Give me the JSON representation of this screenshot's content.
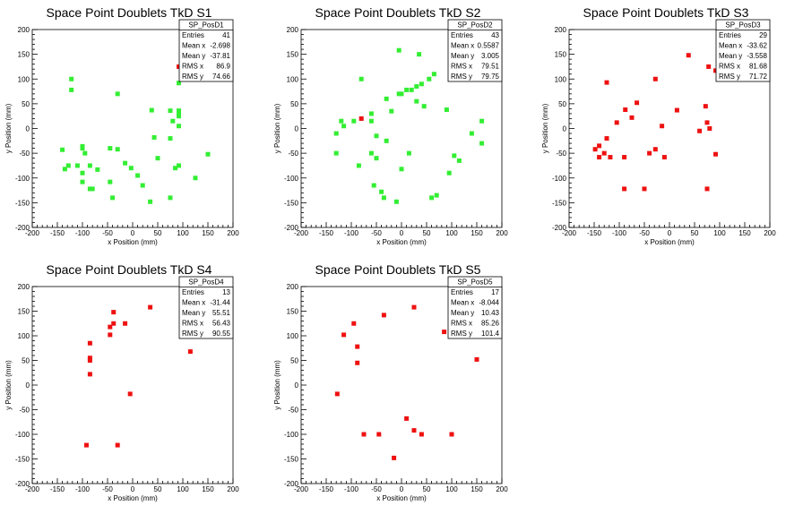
{
  "chart_data": [
    {
      "type": "scatter",
      "title": "Space Point Doublets TkD S1",
      "xlabel": "x Position (mm)",
      "ylabel": "y Position (mm)",
      "xlim": [
        -200,
        200
      ],
      "ylim": [
        -200,
        200
      ],
      "xticks": [
        "-200",
        "-150",
        "-100",
        "-50",
        "0",
        "50",
        "100",
        "150",
        "200"
      ],
      "yticks": [
        "-200",
        "-150",
        "-100",
        "-50",
        "0",
        "50",
        "100",
        "150",
        "200"
      ],
      "stats": {
        "name": "SP_PosD1",
        "rows": [
          {
            "label": "Entries",
            "value": "41"
          },
          {
            "label": "Mean x",
            "value": "-2.698"
          },
          {
            "label": "Mean y",
            "value": "-37.81"
          },
          {
            "label": "RMS x",
            "value": "86.9"
          },
          {
            "label": "RMS y",
            "value": "74.66"
          }
        ]
      },
      "color": "#33ee33",
      "points": [
        {
          "x": 92,
          "y": 125,
          "c": "#ee1111"
        },
        {
          "x": -122,
          "y": 100
        },
        {
          "x": -122,
          "y": 78
        },
        {
          "x": -30,
          "y": 70
        },
        {
          "x": 92,
          "y": 92
        },
        {
          "x": 38,
          "y": 37
        },
        {
          "x": 75,
          "y": 36
        },
        {
          "x": 92,
          "y": 36
        },
        {
          "x": 92,
          "y": 30
        },
        {
          "x": 92,
          "y": 25
        },
        {
          "x": 92,
          "y": 5
        },
        {
          "x": 80,
          "y": 15
        },
        {
          "x": 43,
          "y": -18
        },
        {
          "x": 75,
          "y": -20
        },
        {
          "x": -100,
          "y": -36
        },
        {
          "x": -100,
          "y": -40
        },
        {
          "x": -45,
          "y": -40
        },
        {
          "x": -30,
          "y": -42
        },
        {
          "x": -95,
          "y": -50
        },
        {
          "x": -140,
          "y": -43
        },
        {
          "x": -128,
          "y": -75
        },
        {
          "x": -135,
          "y": -82
        },
        {
          "x": -110,
          "y": -75
        },
        {
          "x": -100,
          "y": -90
        },
        {
          "x": -85,
          "y": -75
        },
        {
          "x": -70,
          "y": -83
        },
        {
          "x": -15,
          "y": -70
        },
        {
          "x": -3,
          "y": -80
        },
        {
          "x": 50,
          "y": -60
        },
        {
          "x": 92,
          "y": -75
        },
        {
          "x": 85,
          "y": -80
        },
        {
          "x": 150,
          "y": -52
        },
        {
          "x": -100,
          "y": -108
        },
        {
          "x": -85,
          "y": -122
        },
        {
          "x": -80,
          "y": -122
        },
        {
          "x": -45,
          "y": -108
        },
        {
          "x": 20,
          "y": -115
        },
        {
          "x": 10,
          "y": -95
        },
        {
          "x": 125,
          "y": -100
        },
        {
          "x": -40,
          "y": -140
        },
        {
          "x": 35,
          "y": -148
        },
        {
          "x": 75,
          "y": -140
        }
      ]
    },
    {
      "type": "scatter",
      "title": "Space Point Doublets TkD S2",
      "xlabel": "x Position (mm)",
      "ylabel": "y Position (mm)",
      "xlim": [
        -200,
        200
      ],
      "ylim": [
        -200,
        200
      ],
      "xticks": [
        "-200",
        "-150",
        "-100",
        "-50",
        "0",
        "50",
        "100",
        "150",
        "200"
      ],
      "yticks": [
        "-200",
        "-150",
        "-100",
        "-50",
        "0",
        "50",
        "100",
        "150",
        "200"
      ],
      "stats": {
        "name": "SP_PosD2",
        "rows": [
          {
            "label": "Entries",
            "value": "43"
          },
          {
            "label": "Mean x",
            "value": "0.5587"
          },
          {
            "label": "Mean y",
            "value": "3.005"
          },
          {
            "label": "RMS x",
            "value": "79.51"
          },
          {
            "label": "RMS y",
            "value": "79.75"
          }
        ]
      },
      "color": "#33ee33",
      "points": [
        {
          "x": -80,
          "y": 20,
          "c": "#ee1111"
        },
        {
          "x": -5,
          "y": 158
        },
        {
          "x": 35,
          "y": 150
        },
        {
          "x": 100,
          "y": 125
        },
        {
          "x": -80,
          "y": 100
        },
        {
          "x": 65,
          "y": 110
        },
        {
          "x": 55,
          "y": 100
        },
        {
          "x": 40,
          "y": 90
        },
        {
          "x": 30,
          "y": 85
        },
        {
          "x": 20,
          "y": 78
        },
        {
          "x": 10,
          "y": 78
        },
        {
          "x": 0,
          "y": 70
        },
        {
          "x": -5,
          "y": 70
        },
        {
          "x": -30,
          "y": 60
        },
        {
          "x": 30,
          "y": 55
        },
        {
          "x": 45,
          "y": 45
        },
        {
          "x": -20,
          "y": 35
        },
        {
          "x": 90,
          "y": 38
        },
        {
          "x": -60,
          "y": 30
        },
        {
          "x": -60,
          "y": 15
        },
        {
          "x": -120,
          "y": 15
        },
        {
          "x": -115,
          "y": 5
        },
        {
          "x": -95,
          "y": 15
        },
        {
          "x": 160,
          "y": 15
        },
        {
          "x": -130,
          "y": -10
        },
        {
          "x": -50,
          "y": -15
        },
        {
          "x": -30,
          "y": -25
        },
        {
          "x": 140,
          "y": -10
        },
        {
          "x": 160,
          "y": -30
        },
        {
          "x": -130,
          "y": -50
        },
        {
          "x": -60,
          "y": -50
        },
        {
          "x": -50,
          "y": -60
        },
        {
          "x": 15,
          "y": -50
        },
        {
          "x": 105,
          "y": -55
        },
        {
          "x": 115,
          "y": -65
        },
        {
          "x": -85,
          "y": -75
        },
        {
          "x": 0,
          "y": -82
        },
        {
          "x": 95,
          "y": -90
        },
        {
          "x": -55,
          "y": -115
        },
        {
          "x": -40,
          "y": -128
        },
        {
          "x": -35,
          "y": -140
        },
        {
          "x": 70,
          "y": -135
        },
        {
          "x": 60,
          "y": -140
        },
        {
          "x": -10,
          "y": -148
        }
      ]
    },
    {
      "type": "scatter",
      "title": "Space Point Doublets TkD S3",
      "xlabel": "x Position (mm)",
      "ylabel": "y Position (mm)",
      "xlim": [
        -200,
        200
      ],
      "ylim": [
        -200,
        200
      ],
      "xticks": [
        "-200",
        "-150",
        "-100",
        "-50",
        "0",
        "50",
        "100",
        "150",
        "200"
      ],
      "yticks": [
        "-200",
        "-150",
        "-100",
        "-50",
        "0",
        "50",
        "100",
        "150",
        "200"
      ],
      "stats": {
        "name": "SP_PosD3",
        "rows": [
          {
            "label": "Entries",
            "value": "29"
          },
          {
            "label": "Mean x",
            "value": "-33.62"
          },
          {
            "label": "Mean y",
            "value": "-3.558"
          },
          {
            "label": "RMS x",
            "value": "81.68"
          },
          {
            "label": "RMS y",
            "value": "71.72"
          }
        ]
      },
      "color": "#ee1111",
      "points": [
        {
          "x": 38,
          "y": 148
        },
        {
          "x": 78,
          "y": 125
        },
        {
          "x": 92,
          "y": 117
        },
        {
          "x": -28,
          "y": 100
        },
        {
          "x": -125,
          "y": 93
        },
        {
          "x": -65,
          "y": 52
        },
        {
          "x": 72,
          "y": 45
        },
        {
          "x": -88,
          "y": 38
        },
        {
          "x": 15,
          "y": 37
        },
        {
          "x": -75,
          "y": 22
        },
        {
          "x": -105,
          "y": 12
        },
        {
          "x": 75,
          "y": 12
        },
        {
          "x": -15,
          "y": 5
        },
        {
          "x": 80,
          "y": 0
        },
        {
          "x": 60,
          "y": -5
        },
        {
          "x": -125,
          "y": -20
        },
        {
          "x": -140,
          "y": -35
        },
        {
          "x": -148,
          "y": -42
        },
        {
          "x": -130,
          "y": -50
        },
        {
          "x": -140,
          "y": -58
        },
        {
          "x": -118,
          "y": -58
        },
        {
          "x": -28,
          "y": -42
        },
        {
          "x": -40,
          "y": -50
        },
        {
          "x": -90,
          "y": -58
        },
        {
          "x": -10,
          "y": -58
        },
        {
          "x": 92,
          "y": -52
        },
        {
          "x": -90,
          "y": -122
        },
        {
          "x": -50,
          "y": -122
        },
        {
          "x": 75,
          "y": -122
        }
      ]
    },
    {
      "type": "scatter",
      "title": "Space Point Doublets TkD S4",
      "xlabel": "x Position (mm)",
      "ylabel": "y Position (mm)",
      "xlim": [
        -200,
        200
      ],
      "ylim": [
        -200,
        200
      ],
      "xticks": [
        "-200",
        "-150",
        "-100",
        "-50",
        "0",
        "50",
        "100",
        "150",
        "200"
      ],
      "yticks": [
        "-200",
        "-150",
        "-100",
        "-50",
        "0",
        "50",
        "100",
        "150",
        "200"
      ],
      "stats": {
        "name": "SP_PosD4",
        "rows": [
          {
            "label": "Entries",
            "value": "13"
          },
          {
            "label": "Mean x",
            "value": "-31.44"
          },
          {
            "label": "Mean y",
            "value": "55.51"
          },
          {
            "label": "RMS x",
            "value": "56.43"
          },
          {
            "label": "RMS y",
            "value": "90.55"
          }
        ]
      },
      "color": "#ee1111",
      "points": [
        {
          "x": 35,
          "y": 158
        },
        {
          "x": -38,
          "y": 148
        },
        {
          "x": -38,
          "y": 125
        },
        {
          "x": -15,
          "y": 125
        },
        {
          "x": -45,
          "y": 118
        },
        {
          "x": -45,
          "y": 102
        },
        {
          "x": -85,
          "y": 85
        },
        {
          "x": 115,
          "y": 68
        },
        {
          "x": -85,
          "y": 55
        },
        {
          "x": -85,
          "y": 50
        },
        {
          "x": -85,
          "y": 22
        },
        {
          "x": -5,
          "y": -18
        },
        {
          "x": -92,
          "y": -122
        },
        {
          "x": -30,
          "y": -122
        }
      ]
    },
    {
      "type": "scatter",
      "title": "Space Point Doublets TkD S5",
      "xlabel": "x Position (mm)",
      "ylabel": "y Position (mm)",
      "xlim": [
        -200,
        200
      ],
      "ylim": [
        -200,
        200
      ],
      "xticks": [
        "-200",
        "-150",
        "-100",
        "-50",
        "0",
        "50",
        "100",
        "150",
        "200"
      ],
      "yticks": [
        "-200",
        "-150",
        "-100",
        "-50",
        "0",
        "50",
        "100",
        "150",
        "200"
      ],
      "stats": {
        "name": "SP_PosD5",
        "rows": [
          {
            "label": "Entries",
            "value": "17"
          },
          {
            "label": "Mean x",
            "value": "-8.044"
          },
          {
            "label": "Mean y",
            "value": "10.43"
          },
          {
            "label": "RMS x",
            "value": "85.26"
          },
          {
            "label": "RMS y",
            "value": "101.4"
          }
        ]
      },
      "color": "#ee1111",
      "points": [
        {
          "x": 25,
          "y": 158
        },
        {
          "x": -35,
          "y": 142
        },
        {
          "x": -95,
          "y": 125
        },
        {
          "x": -115,
          "y": 102
        },
        {
          "x": 85,
          "y": 108
        },
        {
          "x": 115,
          "y": 102
        },
        {
          "x": -88,
          "y": 78
        },
        {
          "x": 150,
          "y": 52
        },
        {
          "x": -88,
          "y": 45
        },
        {
          "x": -128,
          "y": -18
        },
        {
          "x": 10,
          "y": -68
        },
        {
          "x": 25,
          "y": -92
        },
        {
          "x": 40,
          "y": -100
        },
        {
          "x": -75,
          "y": -100
        },
        {
          "x": -45,
          "y": -100
        },
        {
          "x": 100,
          "y": -100
        },
        {
          "x": -15,
          "y": -148
        }
      ]
    }
  ]
}
